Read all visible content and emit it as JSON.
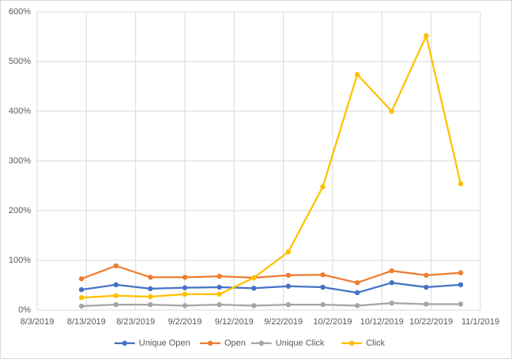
{
  "chart_data": {
    "type": "line",
    "x": [
      "2019-08-12",
      "2019-08-19",
      "2019-08-26",
      "2019-09-02",
      "2019-09-09",
      "2019-09-16",
      "2019-09-23",
      "2019-09-30",
      "2019-10-07",
      "2019-10-14",
      "2019-10-21",
      "2019-10-28"
    ],
    "series": [
      {
        "name": "Unique Open",
        "color": "#4472c4",
        "values": [
          41,
          51,
          43,
          45,
          46,
          44,
          48,
          46,
          35,
          55,
          46,
          51
        ]
      },
      {
        "name": "Open",
        "color": "#ed7d31",
        "values": [
          63,
          89,
          66,
          66,
          68,
          65,
          70,
          71,
          55,
          79,
          70,
          75
        ]
      },
      {
        "name": "Unique Click",
        "color": "#a5a5a5",
        "values": [
          8,
          11,
          11,
          9,
          11,
          9,
          11,
          11,
          9,
          14,
          12,
          12
        ]
      },
      {
        "name": "Click",
        "color": "#ffc000",
        "values": [
          25,
          29,
          27,
          32,
          32,
          65,
          117,
          248,
          474,
          400,
          552,
          254
        ]
      }
    ],
    "xlim": [
      "2019-08-03",
      "2019-11-01"
    ],
    "xticks": [
      {
        "value": "2019-08-03",
        "label": "8/3/2019"
      },
      {
        "value": "2019-08-13",
        "label": "8/13/2019"
      },
      {
        "value": "2019-08-23",
        "label": "8/23/2019"
      },
      {
        "value": "2019-09-02",
        "label": "9/2/2019"
      },
      {
        "value": "2019-09-12",
        "label": "9/12/2019"
      },
      {
        "value": "2019-09-22",
        "label": "9/22/2019"
      },
      {
        "value": "2019-10-02",
        "label": "10/2/2019"
      },
      {
        "value": "2019-10-12",
        "label": "10/12/2019"
      },
      {
        "value": "2019-10-22",
        "label": "10/22/2019"
      },
      {
        "value": "2019-11-01",
        "label": "11/1/2019"
      }
    ],
    "ylim": [
      0,
      600
    ],
    "yticks": [
      {
        "value": 0,
        "label": "0%"
      },
      {
        "value": 100,
        "label": "100%"
      },
      {
        "value": 200,
        "label": "200%"
      },
      {
        "value": 300,
        "label": "300%"
      },
      {
        "value": 400,
        "label": "400%"
      },
      {
        "value": 500,
        "label": "500%"
      },
      {
        "value": 600,
        "label": "600%"
      }
    ],
    "grid": true,
    "legend": "bottom"
  }
}
